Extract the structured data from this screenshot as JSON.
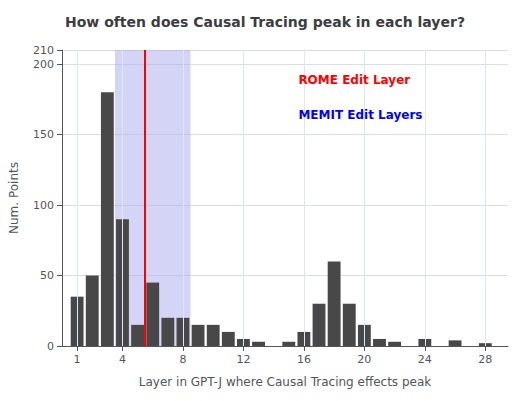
{
  "chart_data": {
    "type": "bar",
    "title": "How often does Causal Tracing peak in each layer?",
    "xlabel": "Layer in GPT-J where Causal Tracing effects peak",
    "ylabel": "Num. Points",
    "x": [
      1,
      2,
      3,
      4,
      5,
      6,
      7,
      8,
      9,
      10,
      11,
      12,
      13,
      14,
      15,
      16,
      17,
      18,
      19,
      20,
      21,
      22,
      23,
      24,
      25,
      26,
      27,
      28
    ],
    "values": [
      35,
      50,
      180,
      90,
      15,
      45,
      20,
      20,
      15,
      15,
      10,
      5,
      3,
      0,
      3,
      10,
      30,
      60,
      30,
      15,
      5,
      3,
      0,
      5,
      0,
      4,
      0,
      2
    ],
    "color": "#484848",
    "xlim": [
      0,
      29.5
    ],
    "xticks": [
      1,
      4,
      8,
      12,
      16,
      20,
      24,
      28
    ],
    "ylim": [
      0,
      210
    ],
    "yticks": [
      0,
      50,
      100,
      150,
      200
    ],
    "grid": true,
    "annotations": [
      {
        "kind": "line",
        "text": "ROME Edit Layer",
        "x": 5.5,
        "color": "red"
      },
      {
        "kind": "span",
        "text": "MEMIT Edit Layers",
        "x": [
          3.5,
          8.5
        ],
        "fill": "#aaaaee",
        "color": "blue"
      }
    ]
  }
}
